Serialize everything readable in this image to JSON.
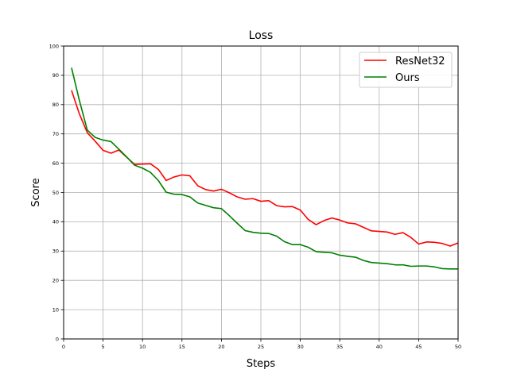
{
  "chart_data": {
    "type": "line",
    "title": "Loss",
    "xlabel": "Steps",
    "ylabel": "Score",
    "xlim": [
      0,
      50
    ],
    "ylim": [
      0,
      100
    ],
    "xticks": [
      0,
      5,
      10,
      15,
      20,
      25,
      30,
      35,
      40,
      45,
      50
    ],
    "yticks": [
      0,
      10,
      20,
      30,
      40,
      50,
      60,
      70,
      80,
      90,
      100
    ],
    "grid": true,
    "legend_position": "top-right",
    "x": [
      1,
      2,
      3,
      4,
      5,
      6,
      7,
      8,
      9,
      10,
      11,
      12,
      13,
      14,
      15,
      16,
      17,
      18,
      19,
      20,
      21,
      22,
      23,
      24,
      25,
      26,
      27,
      28,
      29,
      30,
      31,
      32,
      33,
      34,
      35,
      36,
      37,
      38,
      39,
      40,
      41,
      42,
      43,
      44,
      45,
      46,
      47,
      48,
      49,
      50
    ],
    "series": [
      {
        "name": "ResNet32",
        "color": "#ff0000",
        "values": [
          84.9,
          76.8,
          70.4,
          67.5,
          64.4,
          63.4,
          64.5,
          62.0,
          59.6,
          59.7,
          59.8,
          57.9,
          54.1,
          55.3,
          56.0,
          55.7,
          52.3,
          51.0,
          50.5,
          51.1,
          49.9,
          48.5,
          47.7,
          47.9,
          47.0,
          47.2,
          45.5,
          45.1,
          45.2,
          44.0,
          40.8,
          39.0,
          40.4,
          41.3,
          40.6,
          39.6,
          39.3,
          38.1,
          36.9,
          36.7,
          36.5,
          35.7,
          36.3,
          34.7,
          32.4,
          33.1,
          33.0,
          32.6,
          31.7,
          32.8
        ]
      },
      {
        "name": "Ours",
        "color": "#008000",
        "values": [
          92.6,
          81.4,
          71.3,
          68.8,
          67.9,
          67.4,
          64.8,
          62.1,
          59.3,
          58.3,
          56.9,
          54.1,
          50.1,
          49.4,
          49.3,
          48.5,
          46.4,
          45.6,
          44.8,
          44.5,
          42.1,
          39.5,
          37.0,
          36.4,
          36.1,
          36.0,
          35.1,
          33.2,
          32.2,
          32.2,
          31.3,
          29.8,
          29.6,
          29.4,
          28.6,
          28.2,
          27.9,
          26.8,
          26.1,
          25.9,
          25.7,
          25.3,
          25.3,
          24.8,
          24.9,
          24.9,
          24.6,
          24.0,
          23.9,
          23.9
        ]
      }
    ]
  }
}
